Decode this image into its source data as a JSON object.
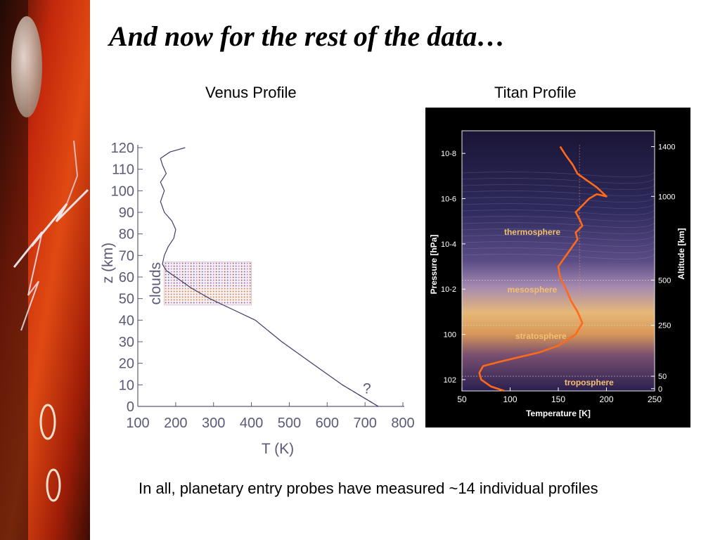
{
  "slide": {
    "title": "And now for the rest of the data…",
    "footer": "In all, planetary entry probes have measured ~14 individual profiles"
  },
  "colors": {
    "axis": "#5a5a78",
    "venus_line": "#3c3c6e",
    "titan_profile": "#ff6a1a",
    "layer_label": "#f4c070",
    "strip_red": "#c4280c",
    "strip_dark": "#1a0a05"
  },
  "chart_data": [
    {
      "type": "line",
      "subtitle": "Venus Profile",
      "xlabel": "T (K)",
      "ylabel": "z (km)",
      "xlim": [
        100,
        800
      ],
      "ylim": [
        0,
        120
      ],
      "xticks": [
        100,
        200,
        300,
        400,
        500,
        600,
        700,
        800
      ],
      "yticks": [
        0,
        10,
        20,
        30,
        40,
        50,
        60,
        70,
        80,
        90,
        100,
        110,
        120
      ],
      "grid": false,
      "annotations": [
        "clouds",
        "?"
      ],
      "series": [
        {
          "style": "solid",
          "x": [
            735,
            640,
            560,
            480,
            410,
            350,
            290,
            240,
            200,
            175,
            165,
            170,
            180,
            195,
            200,
            190,
            170,
            160,
            170,
            160,
            175,
            165,
            160,
            185,
            225
          ],
          "y": [
            0,
            10,
            20,
            30,
            40,
            45,
            50,
            55,
            60,
            63,
            66,
            70,
            74,
            78,
            82,
            86,
            90,
            95,
            100,
            104,
            108,
            112,
            115,
            118,
            120
          ]
        }
      ],
      "extrapolation": {
        "style": "dashed",
        "x": [
          640,
          735
        ],
        "y": [
          10,
          0
        ]
      },
      "clouds_band": {
        "y": [
          47,
          67
        ],
        "x": [
          170,
          400
        ]
      }
    },
    {
      "type": "line",
      "subtitle": "Titan Profile",
      "xlabel": "Temperature [K]",
      "ylabel": "Pressure  [hPa]",
      "y2label": "Altitude  [km]",
      "xlim": [
        50,
        250
      ],
      "xticks": [
        "50",
        "100",
        "150",
        "200",
        "250"
      ],
      "yscale": "log",
      "yticks": [
        "10-8",
        "10-6",
        "10-4",
        "10-2",
        "100",
        "102"
      ],
      "y2ticks": [
        "1400",
        "1000",
        "500",
        "250",
        "50",
        "0"
      ],
      "layers": [
        "thermosphere",
        "mesosphere",
        "stratosphere",
        "troposphere"
      ],
      "grid": false,
      "series": [
        {
          "x": [
            94,
            80,
            70,
            68,
            72,
            90,
            110,
            130,
            150,
            168,
            175,
            170,
            163,
            158,
            152,
            150,
            155,
            160,
            165,
            170,
            168,
            175,
            172,
            168,
            175,
            182,
            190,
            200,
            190,
            180,
            170,
            165,
            158,
            152
          ],
          "log10_p_hpa": [
            2.5,
            2.3,
            2.0,
            1.7,
            1.4,
            1.2,
            1.0,
            0.8,
            0.5,
            0.0,
            -0.5,
            -1.0,
            -1.5,
            -2.0,
            -2.5,
            -3.0,
            -3.3,
            -3.6,
            -3.9,
            -4.2,
            -4.5,
            -4.8,
            -5.1,
            -5.4,
            -5.7,
            -6.0,
            -6.2,
            -6.1,
            -6.5,
            -6.8,
            -7.1,
            -7.5,
            -7.9,
            -8.3
          ]
        }
      ]
    }
  ]
}
